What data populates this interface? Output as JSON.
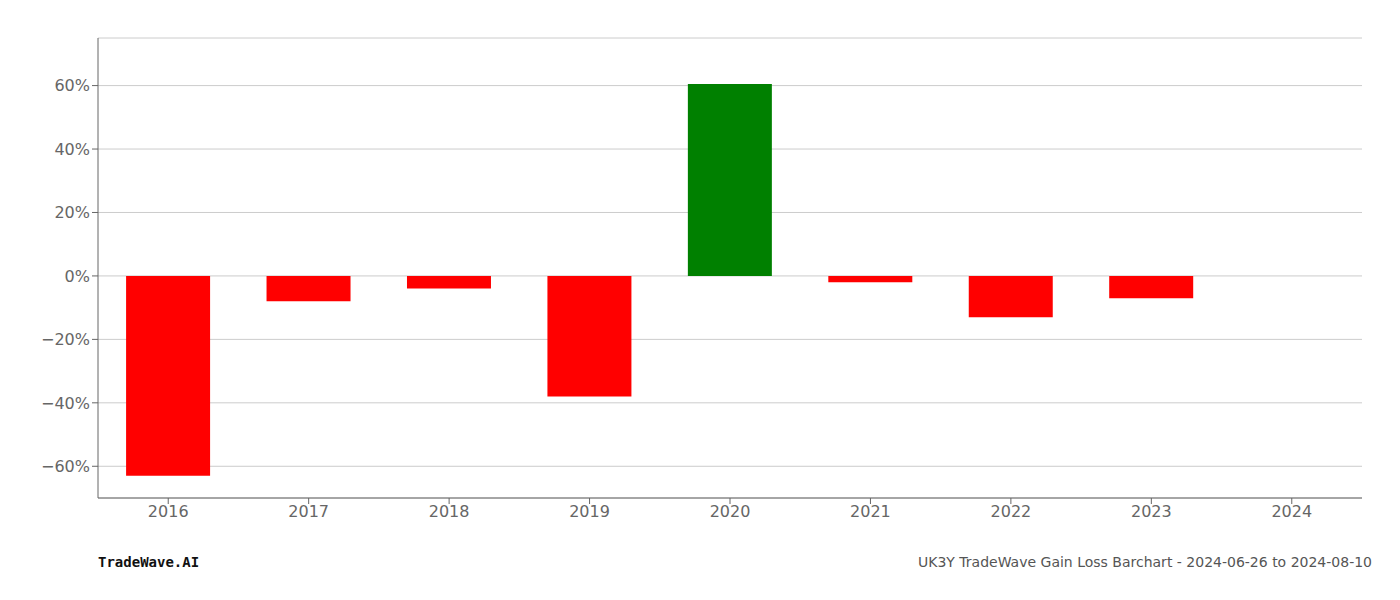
{
  "chart_data": {
    "type": "bar",
    "categories": [
      "2016",
      "2017",
      "2018",
      "2019",
      "2020",
      "2021",
      "2022",
      "2023",
      "2024"
    ],
    "values": [
      -63.0,
      -8.0,
      -4.0,
      -38.0,
      60.5,
      -2.0,
      -13.0,
      -7.0,
      null
    ],
    "colors": [
      "#ff0000",
      "#ff0000",
      "#ff0000",
      "#ff0000",
      "#008000",
      "#ff0000",
      "#ff0000",
      "#ff0000",
      null
    ],
    "ylim": [
      -70,
      75
    ],
    "yticks": [
      {
        "value": 60,
        "label": "60%"
      },
      {
        "value": 40,
        "label": "40%"
      },
      {
        "value": 20,
        "label": "20%"
      },
      {
        "value": 0,
        "label": "0%"
      },
      {
        "value": -20,
        "label": "−20%"
      },
      {
        "value": -40,
        "label": "−40%"
      },
      {
        "value": -60,
        "label": "−60%"
      }
    ],
    "grid": true,
    "annotations": [
      "TradeWave.AI",
      "UK3Y TradeWave Gain Loss Barchart - 2024-06-26 to 2024-08-10"
    ]
  }
}
